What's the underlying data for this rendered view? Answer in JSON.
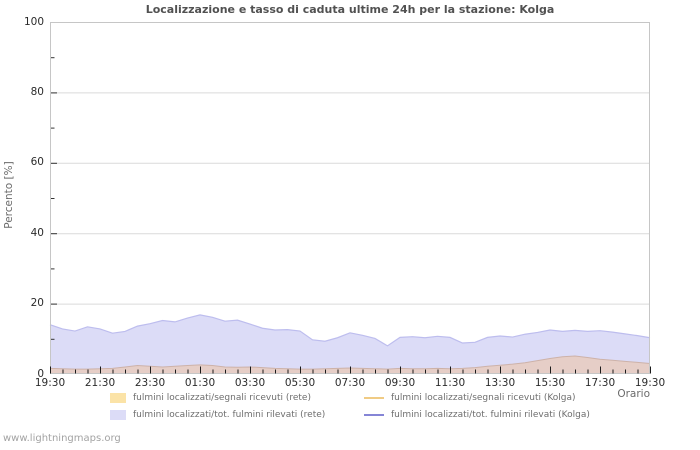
{
  "title": "Localizzazione e tasso di caduta ultime 24h per la stazione: Kolga",
  "watermark": "www.lightningmaps.org",
  "axes": {
    "y_label": "Percento  [%]",
    "x_label": "Orario",
    "y_ticks": [
      0,
      20,
      40,
      60,
      80,
      100
    ],
    "y_minor_ticks": [
      10,
      30,
      50,
      70,
      90
    ],
    "x_tick_labels": [
      "19:30",
      "21:30",
      "23:30",
      "01:30",
      "03:30",
      "05:30",
      "07:30",
      "09:30",
      "11:30",
      "13:30",
      "15:30",
      "17:30",
      "19:30"
    ]
  },
  "colors": {
    "area_rete_segnali": "#fbe3a7",
    "area_rete_rilevati": "#dcdcf7",
    "area_overlap_fill": "#e6cec7",
    "edge_rete_segnali": "#cdb2a9",
    "edge_rete_rilevati": "#bdbdee",
    "line_kolga_segnali": "#f0cb84",
    "line_kolga_rilevati": "#8585d6",
    "grid": "#dadada",
    "border": "#c6c6c6",
    "tick": "#1b1b1b",
    "axis_tick_mark": "#333333",
    "title_text": "#515151",
    "tick_text": "#2b2b2b",
    "axis_text": "#6b6b6b",
    "legend_text": "#6e6e6e",
    "watermark_text": "#a3a3a3"
  },
  "legend": [
    {
      "label": "fulmini localizzati/segnali ricevuti (rete)",
      "type": "area",
      "color": "#fbe3a7"
    },
    {
      "label": "fulmini localizzati/tot. fulmini rilevati (rete)",
      "type": "area",
      "color": "#dcdcf7"
    },
    {
      "label": "fulmini localizzati/segnali ricevuti (Kolga)",
      "type": "line",
      "color": "#f0cb84"
    },
    {
      "label": "fulmini localizzati/tot. fulmini rilevati (Kolga)",
      "type": "line",
      "color": "#8585d6"
    }
  ],
  "chart_data": {
    "type": "area",
    "title": "Localizzazione e tasso di caduta ultime 24h per la stazione: Kolga",
    "xlabel": "Orario",
    "ylabel": "Percento [%]",
    "ylim": [
      0,
      100
    ],
    "grid": true,
    "legend_position": "bottom",
    "x": [
      "19:30",
      "20:00",
      "20:30",
      "21:00",
      "21:30",
      "22:00",
      "22:30",
      "23:00",
      "23:30",
      "00:00",
      "00:30",
      "01:00",
      "01:30",
      "02:00",
      "02:30",
      "03:00",
      "03:30",
      "04:00",
      "04:30",
      "05:00",
      "05:30",
      "06:00",
      "06:30",
      "07:00",
      "07:30",
      "08:00",
      "08:30",
      "09:00",
      "09:30",
      "10:00",
      "10:30",
      "11:00",
      "11:30",
      "12:00",
      "12:30",
      "13:00",
      "13:30",
      "14:00",
      "14:30",
      "15:00",
      "15:30",
      "16:00",
      "16:30",
      "17:00",
      "17:30",
      "18:00",
      "18:30",
      "19:00",
      "19:30"
    ],
    "series": [
      {
        "name": "fulmini localizzati/segnali ricevuti (rete)",
        "style": "area",
        "values": [
          1.6,
          1.5,
          1.4,
          1.4,
          1.5,
          1.6,
          2.0,
          2.4,
          2.2,
          2.0,
          2.2,
          2.4,
          2.6,
          2.4,
          2.0,
          1.9,
          2.0,
          1.8,
          1.6,
          1.5,
          1.4,
          1.4,
          1.5,
          1.6,
          1.7,
          1.6,
          1.5,
          1.4,
          1.6,
          1.5,
          1.5,
          1.6,
          1.5,
          1.6,
          1.8,
          2.2,
          2.5,
          2.8,
          3.2,
          3.8,
          4.4,
          4.9,
          5.1,
          4.7,
          4.2,
          3.9,
          3.6,
          3.3,
          3.0
        ]
      },
      {
        "name": "fulmini localizzati/tot. fulmini rilevati (rete)",
        "style": "area",
        "values": [
          14.0,
          12.8,
          12.2,
          13.4,
          12.8,
          11.6,
          12.1,
          13.6,
          14.3,
          15.2,
          14.8,
          15.9,
          16.8,
          16.1,
          15.0,
          15.3,
          14.2,
          13.0,
          12.5,
          12.6,
          12.2,
          9.7,
          9.3,
          10.3,
          11.7,
          11.0,
          10.1,
          8.0,
          10.4,
          10.6,
          10.3,
          10.7,
          10.4,
          8.8,
          9.0,
          10.4,
          10.8,
          10.5,
          11.3,
          11.8,
          12.5,
          12.1,
          12.4,
          12.1,
          12.3,
          11.9,
          11.4,
          10.9,
          10.3
        ]
      },
      {
        "name": "fulmini localizzati/segnali ricevuti (Kolga)",
        "style": "line",
        "values": [
          1.6,
          1.5,
          1.4,
          1.4,
          1.5,
          1.6,
          2.0,
          2.4,
          2.2,
          2.0,
          2.2,
          2.4,
          2.6,
          2.4,
          2.0,
          1.9,
          2.0,
          1.8,
          1.6,
          1.5,
          1.4,
          1.4,
          1.5,
          1.6,
          1.7,
          1.6,
          1.5,
          1.4,
          1.6,
          1.5,
          1.5,
          1.6,
          1.5,
          1.6,
          1.8,
          2.2,
          2.5,
          2.8,
          3.2,
          3.8,
          4.4,
          4.9,
          5.1,
          4.7,
          4.2,
          3.9,
          3.6,
          3.3,
          3.0
        ]
      },
      {
        "name": "fulmini localizzati/tot. fulmini rilevati (Kolga)",
        "style": "line",
        "values": [
          14.0,
          12.8,
          12.2,
          13.4,
          12.8,
          11.6,
          12.1,
          13.6,
          14.3,
          15.2,
          14.8,
          15.9,
          16.8,
          16.1,
          15.0,
          15.3,
          14.2,
          13.0,
          12.5,
          12.6,
          12.2,
          9.7,
          9.3,
          10.3,
          11.7,
          11.0,
          10.1,
          8.0,
          10.4,
          10.6,
          10.3,
          10.7,
          10.4,
          8.8,
          9.0,
          10.4,
          10.8,
          10.5,
          11.3,
          11.8,
          12.5,
          12.1,
          12.4,
          12.1,
          12.3,
          11.9,
          11.4,
          10.9,
          10.3
        ]
      }
    ]
  }
}
